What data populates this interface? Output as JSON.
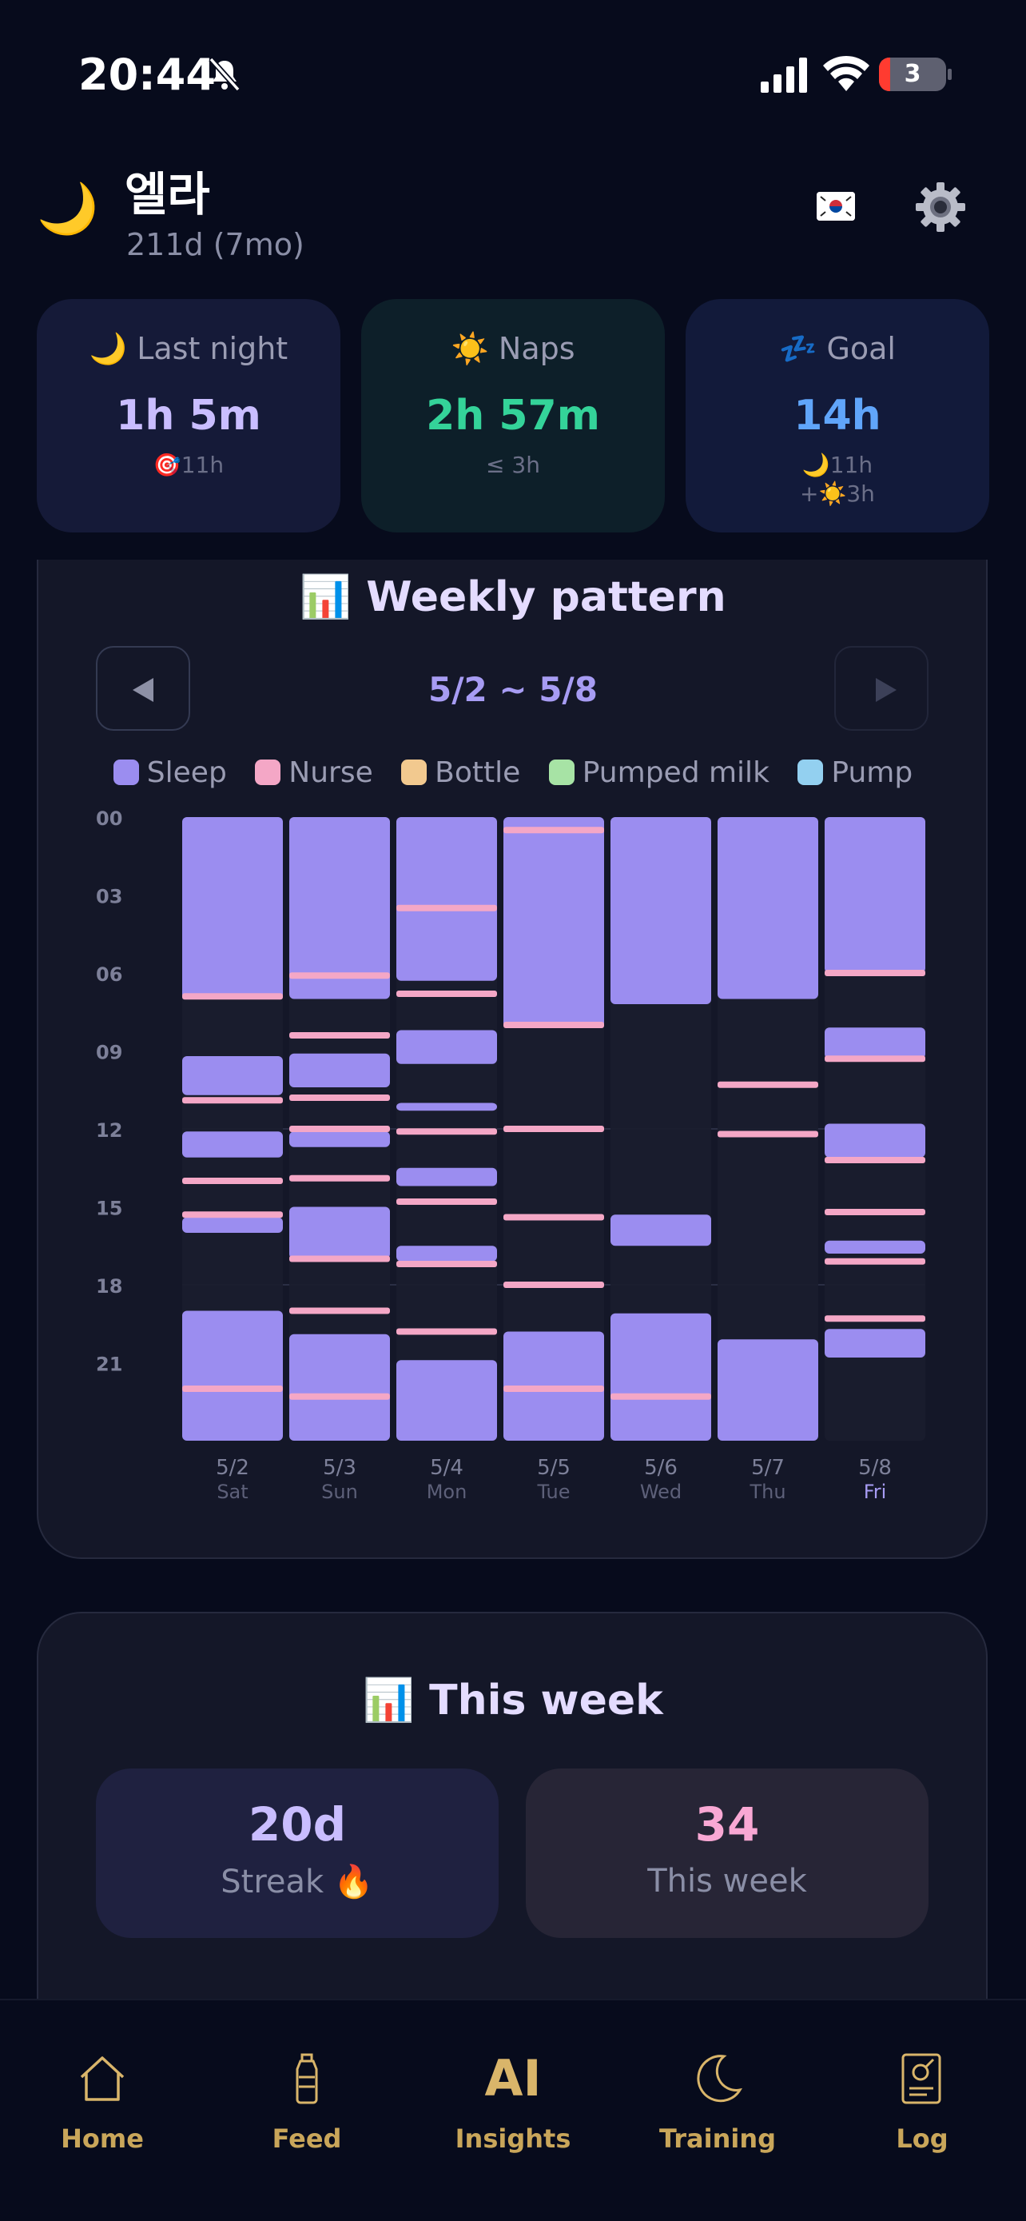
{
  "status_bar": {
    "time": "20:44",
    "battery": "3"
  },
  "header": {
    "emoji": "🌙",
    "name": "엘라",
    "age": "211d (7mo)"
  },
  "summary": [
    {
      "emoji": "🌙",
      "label": "Last night",
      "value": "1h 5m",
      "sub1": "🎯11h",
      "sub2": ""
    },
    {
      "emoji": "☀️",
      "label": "Naps",
      "value": "2h 57m",
      "sub1": "≤ 3h",
      "sub2": ""
    },
    {
      "emoji": "💤",
      "label": "Goal",
      "value": "14h",
      "sub1": "🌙11h",
      "sub2": "+☀️3h"
    }
  ],
  "pattern": {
    "title": "📊 Weekly pattern",
    "range": "5/2 ~ 5/8"
  },
  "chart_data": {
    "type": "timeline",
    "legend": [
      {
        "name": "Sleep",
        "color": "#9b8df0"
      },
      {
        "name": "Nurse",
        "color": "#f4a7c6"
      },
      {
        "name": "Bottle",
        "color": "#f2c98f"
      },
      {
        "name": "Pumped milk",
        "color": "#a7e3a5"
      },
      {
        "name": "Pump",
        "color": "#93d0f0"
      }
    ],
    "y_ticks": [
      "00",
      "03",
      "06",
      "09",
      "12",
      "15",
      "18",
      "21"
    ],
    "y_range_hours": [
      0,
      24
    ],
    "days": [
      {
        "date": "5/2",
        "weekday": "Sat",
        "today": false,
        "sleep": [
          [
            0,
            7
          ],
          [
            9.2,
            10.7
          ],
          [
            12.1,
            13.1
          ],
          [
            15.4,
            16.0
          ],
          [
            19.0,
            24
          ]
        ],
        "nurse": [
          6.9,
          10.9,
          14.0,
          15.3,
          22.0
        ]
      },
      {
        "date": "5/3",
        "weekday": "Sun",
        "today": false,
        "sleep": [
          [
            0,
            7.0
          ],
          [
            9.1,
            10.4
          ],
          [
            12.1,
            12.7
          ],
          [
            15.0,
            17.0
          ],
          [
            19.9,
            24
          ]
        ],
        "nurse": [
          6.1,
          8.4,
          10.8,
          12.0,
          13.9,
          17.0,
          19.0,
          22.3
        ]
      },
      {
        "date": "5/4",
        "weekday": "Mon",
        "today": false,
        "sleep": [
          [
            0,
            6.3
          ],
          [
            8.2,
            9.5
          ],
          [
            11.0,
            11.3
          ],
          [
            13.5,
            14.2
          ],
          [
            16.5,
            17.1
          ],
          [
            20.9,
            24
          ]
        ],
        "nurse": [
          3.5,
          6.8,
          12.1,
          14.8,
          17.2,
          19.8
        ]
      },
      {
        "date": "5/5",
        "weekday": "Tue",
        "today": false,
        "sleep": [
          [
            0,
            8.1
          ],
          [
            19.8,
            24
          ]
        ],
        "nurse": [
          0.5,
          8.0,
          12.0,
          15.4,
          18.0,
          22.0
        ]
      },
      {
        "date": "5/6",
        "weekday": "Wed",
        "today": false,
        "sleep": [
          [
            0,
            7.2
          ],
          [
            15.3,
            16.5
          ],
          [
            19.1,
            24
          ]
        ],
        "nurse": [
          22.3
        ]
      },
      {
        "date": "5/7",
        "weekday": "Thu",
        "today": false,
        "sleep": [
          [
            0,
            7.0
          ],
          [
            20.1,
            24
          ]
        ],
        "nurse": [
          10.3,
          12.2
        ]
      },
      {
        "date": "5/8",
        "weekday": "Fri",
        "today": true,
        "sleep": [
          [
            0,
            6.0
          ],
          [
            8.1,
            9.3
          ],
          [
            11.8,
            13.1
          ],
          [
            16.3,
            16.8
          ],
          [
            19.7,
            20.8
          ]
        ],
        "nurse": [
          6.0,
          9.3,
          13.2,
          15.2,
          17.1,
          19.3
        ]
      }
    ]
  },
  "week": {
    "title": "📊 This week",
    "streak_value": "20d",
    "streak_label": "Streak 🔥",
    "count_value": "34",
    "count_label": "This week"
  },
  "nav": [
    {
      "label": "Home",
      "icon": "home-icon"
    },
    {
      "label": "Feed",
      "icon": "bottle-icon"
    },
    {
      "label": "Insights",
      "icon": "ai-icon",
      "glyph": "AI"
    },
    {
      "label": "Training",
      "icon": "moon-icon"
    },
    {
      "label": "Log",
      "icon": "document-icon"
    }
  ],
  "colors": {
    "sleep": "#9b8df0",
    "nurse": "#f4a7c6",
    "accent": "#c9a65a"
  }
}
